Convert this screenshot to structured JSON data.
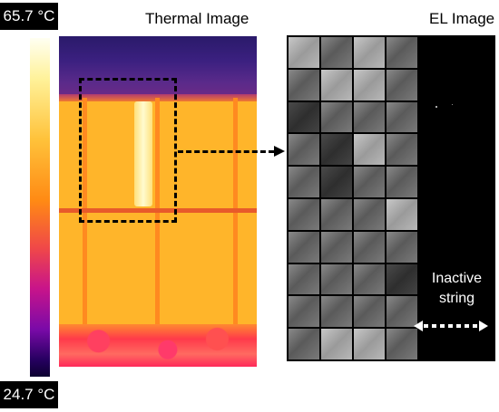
{
  "colorbar": {
    "max_label": "65.7 °C",
    "min_label": "24.7 °C"
  },
  "thermal": {
    "title": "Thermal Image"
  },
  "el": {
    "title": "EL Image",
    "annotation": "Inactive string"
  },
  "el_cells": [
    "light",
    "",
    "light",
    "",
    "",
    "light",
    "light",
    "",
    "dark",
    "",
    "",
    "",
    "",
    "dark",
    "light",
    "",
    "",
    "dark",
    "",
    "",
    "",
    "",
    "",
    "light",
    "",
    "",
    "",
    "",
    "",
    "",
    "",
    "dark",
    "",
    "",
    "",
    "",
    "",
    "light",
    "light",
    ""
  ],
  "colors": {
    "background": "#ffffff",
    "label_box": "#000000",
    "dashed_outline": "#000000",
    "annotation_text": "#ffffff"
  },
  "icons": [
    "double-arrow-icon",
    "arrow-right-icon"
  ]
}
